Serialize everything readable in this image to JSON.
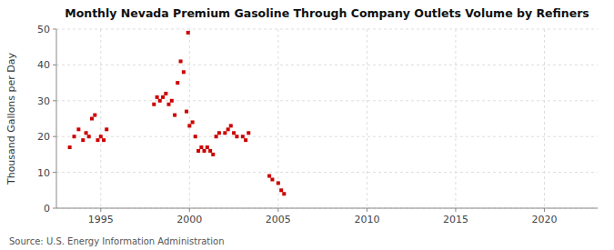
{
  "chart_data": {
    "type": "scatter",
    "title": "Monthly Nevada Premium Gasoline Through Company Outlets Volume by Refiners",
    "ylabel": "Thousand Gallons per Day",
    "annotations": [
      "Source: U.S. Energy Information Administration"
    ],
    "color": "#cc0000",
    "marker": "square",
    "grid": true,
    "xlim": [
      1992.5,
      2023
    ],
    "ylim": [
      0,
      50
    ],
    "xticks": [
      1995,
      2000,
      2005,
      2010,
      2015,
      2020
    ],
    "yticks": [
      0,
      10,
      20,
      30,
      40,
      50
    ],
    "x": [
      1993.25,
      1993.5,
      1993.75,
      1994.0,
      1994.17,
      1994.33,
      1994.5,
      1994.67,
      1994.83,
      1995.0,
      1995.17,
      1995.33,
      1998.0,
      1998.17,
      1998.33,
      1998.5,
      1998.67,
      1998.83,
      1999.0,
      1999.17,
      1999.33,
      1999.5,
      1999.67,
      1999.83,
      1999.92,
      2000.0,
      2000.17,
      2000.33,
      2000.5,
      2000.67,
      2000.83,
      2001.0,
      2001.17,
      2001.33,
      2001.5,
      2001.67,
      2002.0,
      2002.17,
      2002.33,
      2002.5,
      2002.67,
      2003.0,
      2003.17,
      2003.33,
      2004.5,
      2004.67,
      2005.0,
      2005.17,
      2005.33
    ],
    "values": [
      17,
      20,
      22,
      19,
      21,
      20,
      25,
      26,
      19,
      20,
      19,
      22,
      29,
      31,
      30,
      31,
      32,
      29,
      30,
      26,
      35,
      41,
      38,
      27,
      49,
      23,
      24,
      20,
      16,
      17,
      16,
      17,
      16,
      15,
      20,
      21,
      21,
      22,
      23,
      21,
      20,
      20,
      19,
      21,
      9,
      8,
      7,
      5,
      4
    ]
  }
}
